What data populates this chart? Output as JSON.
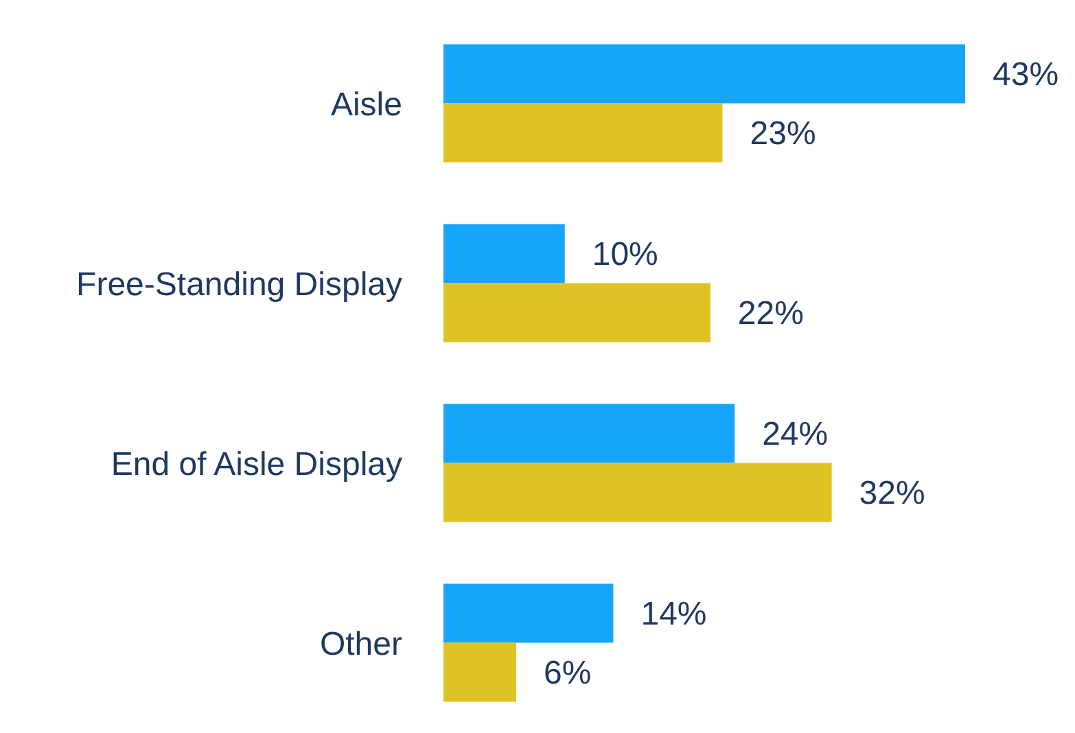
{
  "chart_data": {
    "type": "bar",
    "orientation": "horizontal",
    "categories": [
      "Aisle",
      "Free-Standing Display",
      "End of Aisle Display",
      "Other"
    ],
    "series": [
      {
        "color": "#17a5fa",
        "values": [
          43,
          10,
          24,
          14
        ],
        "value_labels": [
          "43%",
          "10%",
          "24%",
          "14%"
        ]
      },
      {
        "color": "#dfc324",
        "values": [
          23,
          22,
          32,
          6
        ],
        "value_labels": [
          "23%",
          "22%",
          "32%",
          "6%"
        ]
      }
    ],
    "legend": false,
    "grid": false
  }
}
